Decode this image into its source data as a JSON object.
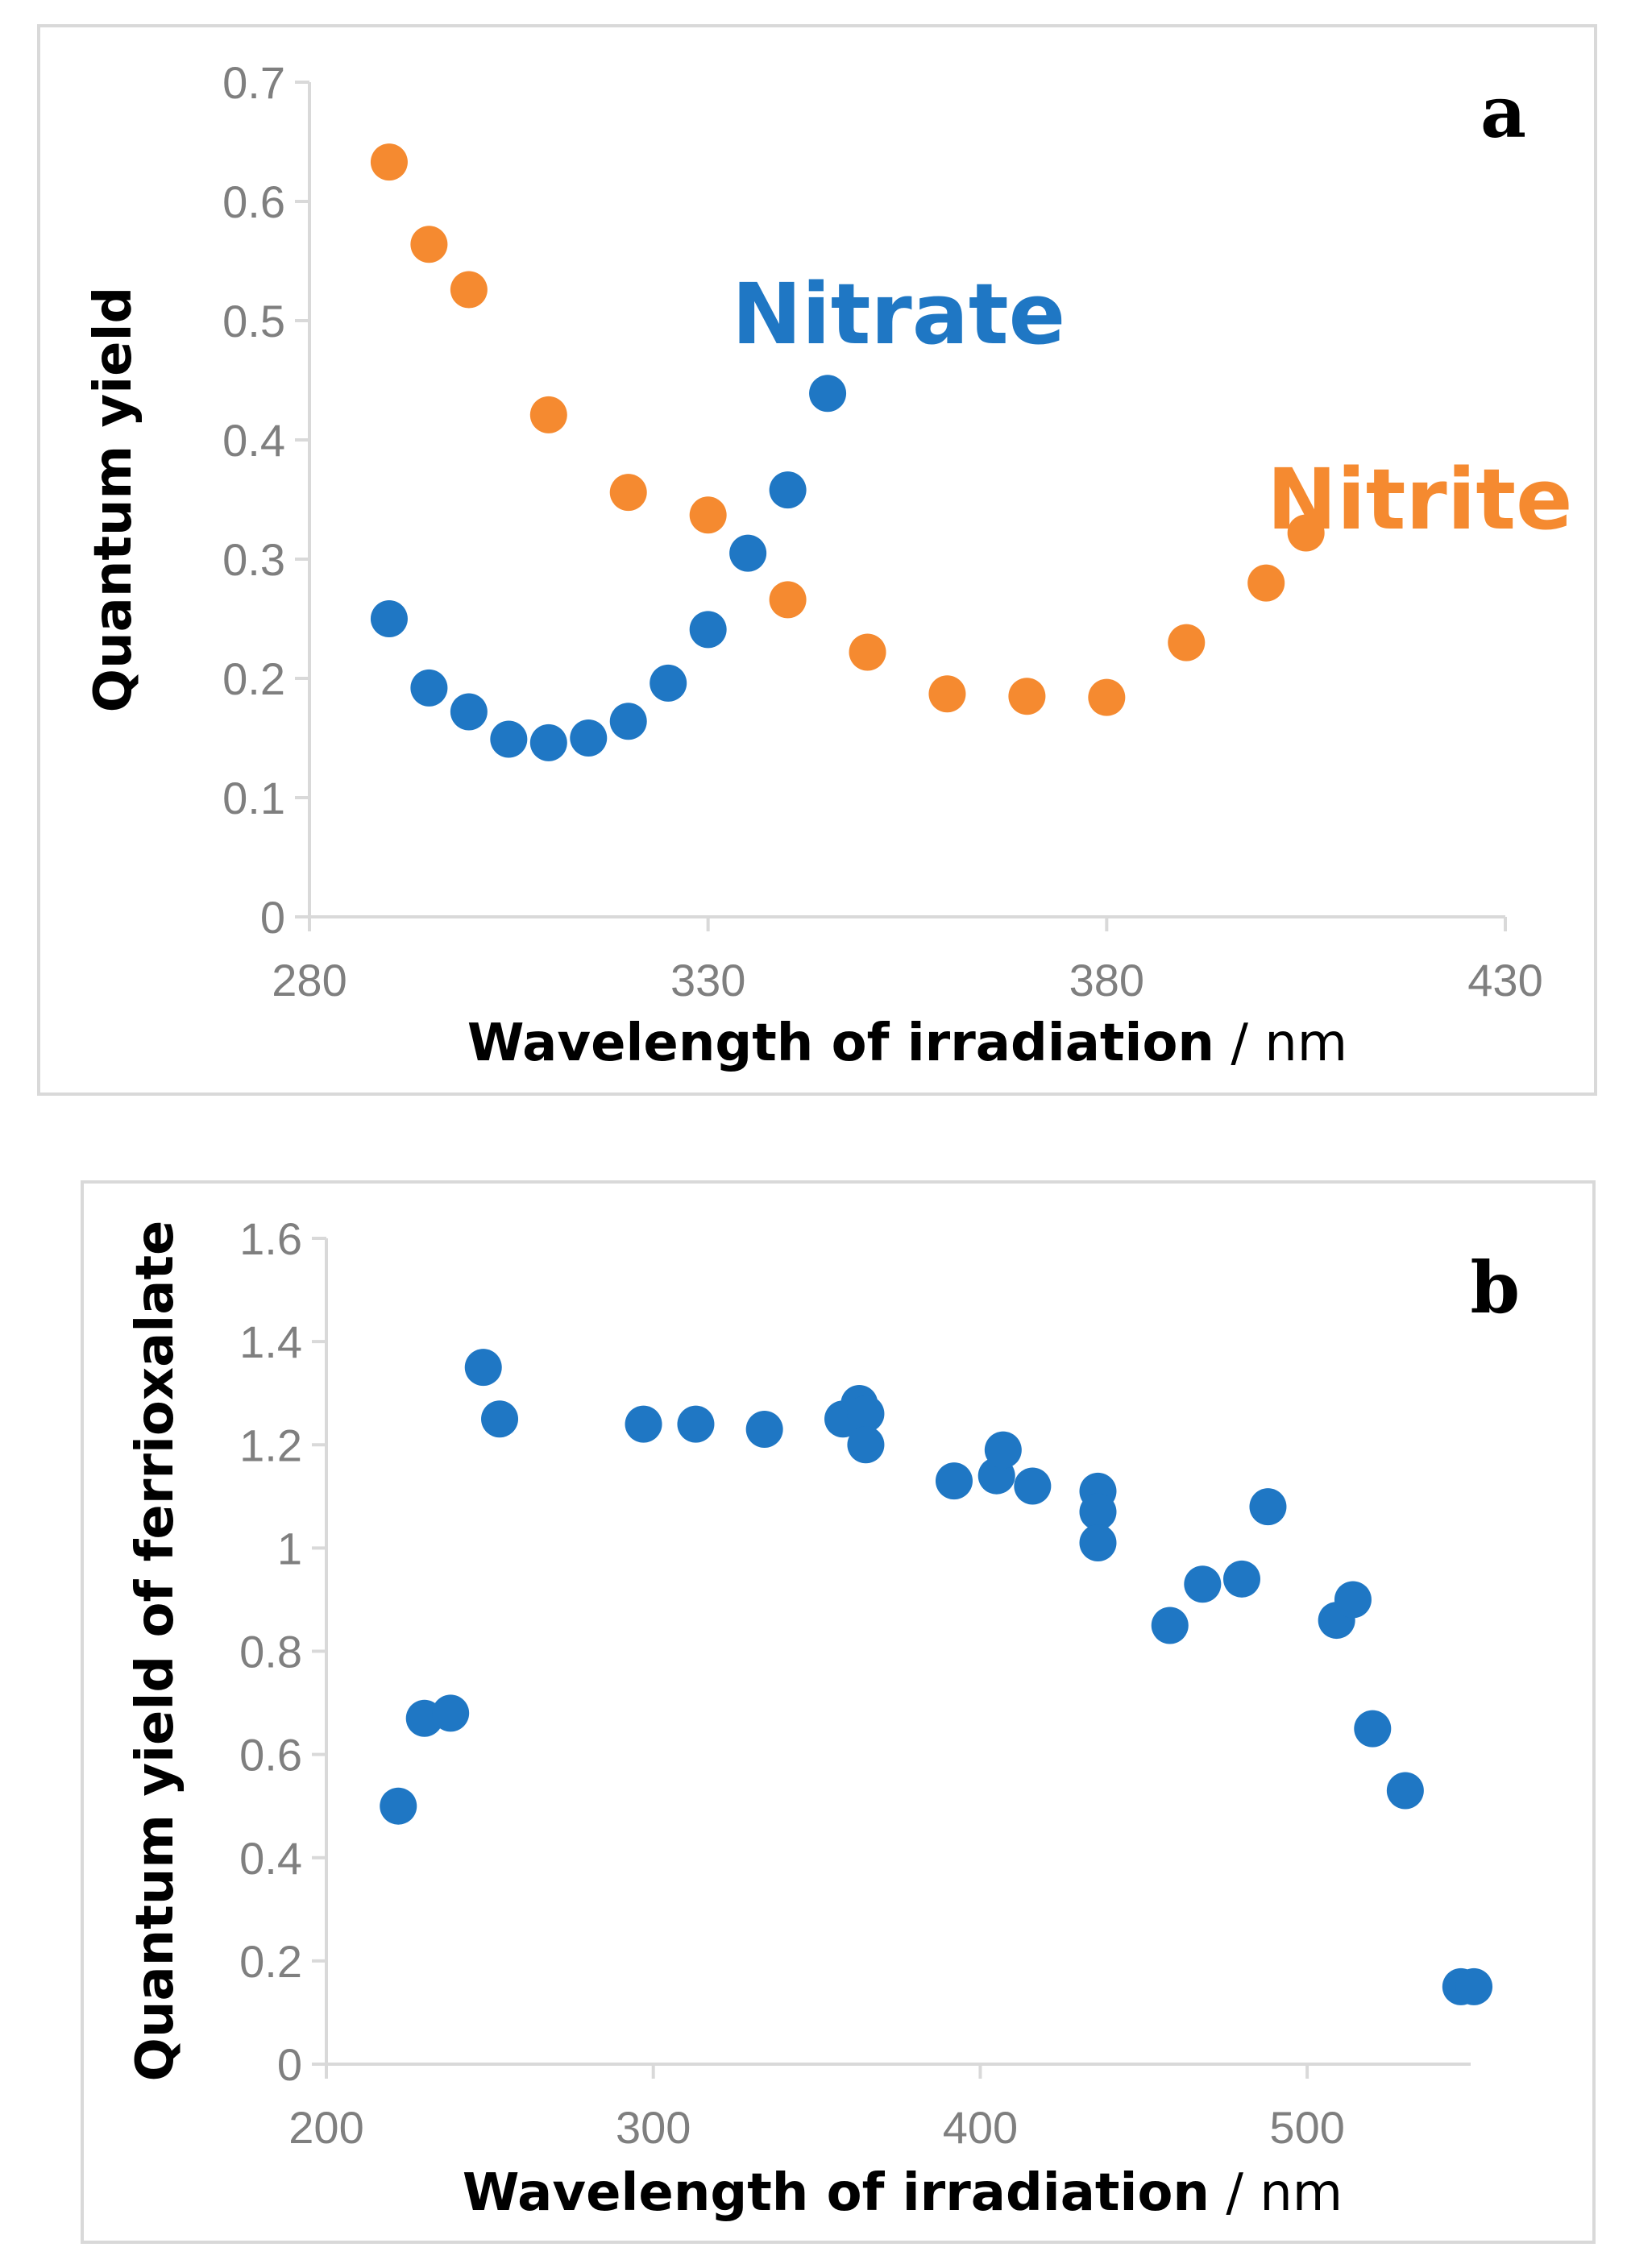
{
  "colors": {
    "series_blue": "#1f77c4",
    "series_orange": "#f58a30",
    "axis": "#d9d9d9",
    "tick_text": "#7f7f7f"
  },
  "chart_data": [
    {
      "type": "scatter",
      "panel_label": "a",
      "xlabel_bold": "Wavelength of irradiation",
      "xlabel_unit": " / nm",
      "ylabel": "Quantum yield",
      "xlim": [
        280,
        430
      ],
      "ylim": [
        0,
        0.7
      ],
      "x_ticks": [
        280,
        330,
        380,
        430
      ],
      "y_ticks": [
        0,
        0.1,
        0.2,
        0.3,
        0.4,
        0.5,
        0.6,
        0.7
      ],
      "grid": false,
      "series": [
        {
          "name": "Nitrate",
          "color": "#1f77c4",
          "x": [
            290,
            295,
            300,
            305,
            310,
            315,
            320,
            325,
            330,
            335,
            340,
            345
          ],
          "y": [
            0.25,
            0.192,
            0.172,
            0.149,
            0.146,
            0.15,
            0.164,
            0.196,
            0.241,
            0.305,
            0.358,
            0.439
          ]
        },
        {
          "name": "Nitrite",
          "color": "#f58a30",
          "x": [
            290,
            295,
            300,
            310,
            320,
            330,
            340,
            350,
            360,
            370,
            380,
            390,
            400,
            405
          ],
          "y": [
            0.633,
            0.564,
            0.526,
            0.421,
            0.356,
            0.337,
            0.266,
            0.222,
            0.187,
            0.185,
            0.184,
            0.23,
            0.28,
            0.322
          ]
        }
      ]
    },
    {
      "type": "scatter",
      "panel_label": "b",
      "xlabel_bold": "Wavelength of irradiation",
      "xlabel_unit": " / nm",
      "ylabel": "Quantum yield of ferrioxalate",
      "xlim": [
        200,
        550
      ],
      "ylim": [
        0,
        1.6
      ],
      "x_ticks": [
        200,
        300,
        400,
        500
      ],
      "y_ticks": [
        0,
        0.2,
        0.4,
        0.6,
        0.8,
        1,
        1.2,
        1.4,
        1.6
      ],
      "grid": false,
      "series": [
        {
          "name": "Ferrioxalate",
          "color": "#1f77c4",
          "x": [
            222,
            230,
            238,
            248,
            253,
            297,
            313,
            334,
            358,
            363,
            365,
            365,
            392,
            405,
            407,
            416,
            436,
            436,
            436,
            458,
            468,
            480,
            488,
            509,
            514,
            520,
            530,
            547,
            551
          ],
          "y": [
            0.5,
            0.67,
            0.68,
            1.35,
            1.25,
            1.24,
            1.24,
            1.23,
            1.25,
            1.28,
            1.26,
            1.2,
            1.13,
            1.14,
            1.19,
            1.12,
            1.11,
            1.07,
            1.01,
            0.85,
            0.93,
            0.94,
            1.08,
            0.86,
            0.9,
            0.65,
            0.53,
            0.15,
            0.15
          ]
        }
      ]
    }
  ]
}
